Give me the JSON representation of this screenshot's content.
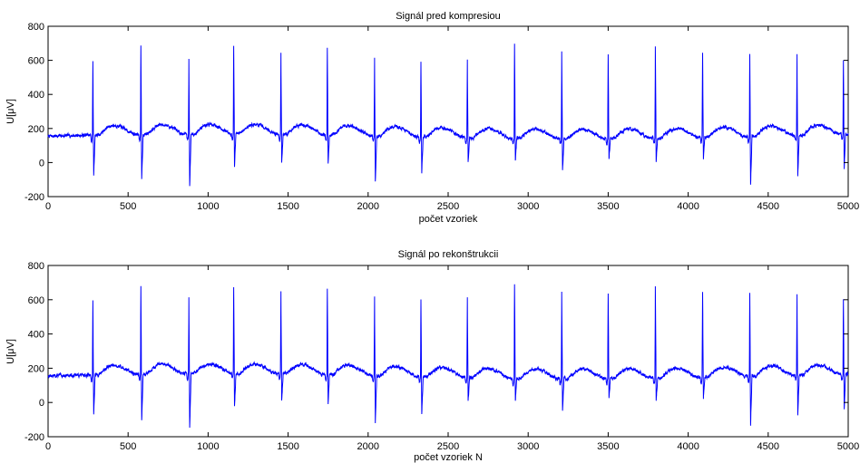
{
  "colors": {
    "signal": "#0000ff",
    "axes": "#000000",
    "background": "#ffffff"
  },
  "chart_data": [
    {
      "type": "line",
      "title": "Signál pred kompresiou",
      "xlabel": "počet vzoriek",
      "ylabel": "U[μV]",
      "xlim": [
        0,
        5000
      ],
      "ylim": [
        -200,
        800
      ],
      "xticks": [
        0,
        500,
        1000,
        1500,
        2000,
        2500,
        3000,
        3500,
        4000,
        4500,
        5000
      ],
      "yticks": [
        -200,
        0,
        200,
        400,
        600,
        800
      ],
      "grid": false,
      "series": [
        {
          "beats_x": [
            280,
            580,
            880,
            1160,
            1455,
            1745,
            2040,
            2330,
            2620,
            2915,
            3210,
            3500,
            3795,
            4090,
            4385,
            4680,
            4970
          ],
          "peaks": [
            590,
            680,
            610,
            680,
            640,
            670,
            610,
            600,
            610,
            690,
            650,
            630,
            680,
            640,
            640,
            630,
            600
          ],
          "troughs": [
            -70,
            -100,
            -140,
            -20,
            0,
            0,
            -120,
            -60,
            0,
            10,
            -50,
            20,
            10,
            20,
            -130,
            -80,
            -30
          ],
          "baseline_mean": 155,
          "t_wave_amplitude": 75
        }
      ]
    },
    {
      "type": "line",
      "title": "Signál po rekonštrukcii",
      "xlabel": "počet vzoriek N",
      "ylabel": "U[μV]",
      "xlim": [
        0,
        5000
      ],
      "ylim": [
        -200,
        800
      ],
      "xticks": [
        0,
        500,
        1000,
        1500,
        2000,
        2500,
        3000,
        3500,
        4000,
        4500,
        5000
      ],
      "yticks": [
        -200,
        0,
        200,
        400,
        600,
        800
      ],
      "grid": false,
      "series": [
        {
          "beats_x": [
            280,
            580,
            880,
            1160,
            1455,
            1745,
            2040,
            2330,
            2620,
            2915,
            3210,
            3500,
            3795,
            4090,
            4385,
            4680,
            4970
          ],
          "peaks": [
            590,
            680,
            610,
            680,
            640,
            670,
            610,
            600,
            610,
            690,
            650,
            630,
            680,
            640,
            640,
            630,
            600
          ],
          "troughs": [
            -70,
            -100,
            -140,
            -20,
            0,
            0,
            -120,
            -60,
            0,
            10,
            -50,
            20,
            10,
            20,
            -130,
            -80,
            -30
          ],
          "baseline_mean": 155,
          "t_wave_amplitude": 75
        }
      ]
    }
  ]
}
